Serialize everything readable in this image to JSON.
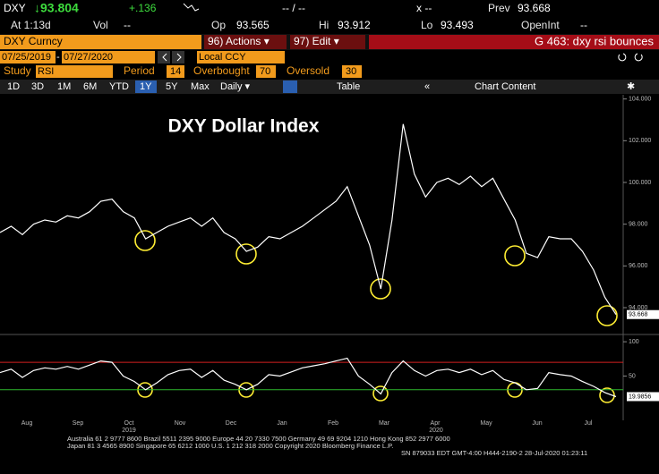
{
  "quote": {
    "ticker": "DXY",
    "last": "↓93.804",
    "change": "+.136",
    "bid": "-- / --",
    "x": "x --",
    "prev_label": "Prev",
    "prev": "93.668",
    "at": "At 1:13d",
    "vol_label": "Vol",
    "vol": "--",
    "op_label": "Op",
    "op": "93.565",
    "hi_label": "Hi",
    "hi": "93.912",
    "lo_label": "Lo",
    "lo": "93.493",
    "oi_label": "OpenInt",
    "oi": "--"
  },
  "toolbar": {
    "security": "DXY Curncy",
    "actions": "96) Actions ▾",
    "edit": "97) Edit ▾",
    "page": "G 463: dxy rsi bounces",
    "start": "07/25/2019",
    "dash": "-",
    "end": "07/27/2020",
    "ccy": "Local CCY"
  },
  "study": {
    "study_label": "Study",
    "study": "RSI",
    "period_label": "Period",
    "period": 14,
    "ob_label": "Overbought",
    "ob": 70,
    "os_label": "Oversold",
    "os": 30
  },
  "ranges": [
    "1D",
    "3D",
    "1M",
    "6M",
    "YTD",
    "1Y",
    "5Y",
    "Max"
  ],
  "frequency": "Daily ▾",
  "table": "Table",
  "chart_content": "Chart Content",
  "months": [
    "Aug",
    "Sep",
    "Oct",
    "Nov",
    "Dec",
    "Jan",
    "Feb",
    "Mar",
    "Apr",
    "May",
    "Jun",
    "Jul"
  ],
  "years": [
    "2019",
    "2020"
  ],
  "chart_data": [
    {
      "type": "line",
      "title": "DXY Dollar Index",
      "color": "#ffffff",
      "values": [
        97.6,
        97.9,
        97.5,
        98.0,
        98.2,
        98.1,
        98.4,
        98.3,
        98.6,
        99.1,
        99.2,
        98.6,
        98.3,
        97.3,
        97.6,
        97.9,
        98.1,
        98.3,
        97.9,
        98.3,
        97.6,
        97.3,
        96.7,
        96.9,
        97.4,
        97.3,
        97.6,
        97.9,
        98.3,
        98.7,
        99.1,
        99.8,
        98.4,
        97.0,
        94.9,
        98.2,
        102.8,
        100.4,
        99.3,
        100.0,
        100.2,
        99.9,
        100.3,
        99.8,
        100.2,
        99.2,
        98.2,
        96.6,
        96.4,
        97.4,
        97.3,
        97.3,
        96.7,
        95.8,
        94.5,
        93.668
      ],
      "ylim": [
        92.8,
        104.2
      ],
      "yticks": [
        {
          "value": 94,
          "label": "94.000"
        },
        {
          "value": 96,
          "label": "96.000"
        },
        {
          "value": 98,
          "label": "98.000"
        },
        {
          "value": 100,
          "label": "100.000"
        },
        {
          "value": 102,
          "label": "102.000"
        },
        {
          "value": 104,
          "label": "104.000"
        }
      ]
    },
    {
      "type": "line",
      "color": "#ffffff",
      "values": [
        55,
        60,
        48,
        58,
        62,
        60,
        64,
        60,
        66,
        72,
        70,
        50,
        42,
        30,
        40,
        52,
        58,
        60,
        48,
        58,
        44,
        38,
        30,
        38,
        52,
        50,
        56,
        62,
        65,
        68,
        72,
        76,
        50,
        38,
        24,
        55,
        72,
        58,
        50,
        58,
        60,
        55,
        60,
        52,
        58,
        45,
        40,
        30,
        32,
        55,
        52,
        50,
        42,
        35,
        26,
        19.9856
      ],
      "ylim": [
        -12,
        108
      ],
      "yticks": [
        50,
        100
      ]
    }
  ],
  "footer": {
    "line1": "Australia 61 2 9777 8600 Brazil 5511 2395 9000 Europe 44 20 7330 7500 Germany 49 69 9204 1210 Hong Kong 852 2977 6000",
    "line2": "Japan 81 3 4565 8900        Singapore 65 6212 1000        U.S. 1 212 318 2000        Copyright 2020 Bloomberg Finance L.P.",
    "line3": "SN 879033 EDT  GMT-4:00 H444-2190-2 28-Jul-2020 01:23:11"
  }
}
